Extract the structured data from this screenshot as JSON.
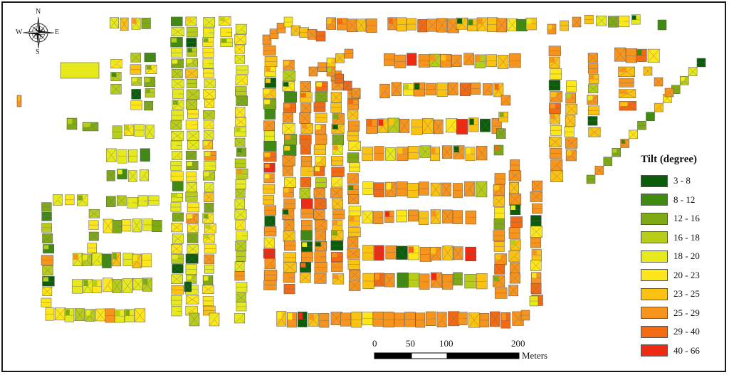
{
  "compass": {
    "north": "N",
    "south": "S",
    "east": "E",
    "west": "W"
  },
  "legend": {
    "title": "Tilt (degree)",
    "classes": [
      {
        "label": "3 - 8",
        "color": "#0b5d0b"
      },
      {
        "label": "8 - 12",
        "color": "#3f8a10"
      },
      {
        "label": "12 - 16",
        "color": "#7faa16"
      },
      {
        "label": "16 - 18",
        "color": "#b8cc1a"
      },
      {
        "label": "18 - 20",
        "color": "#e6ea1c"
      },
      {
        "label": "20 - 23",
        "color": "#fde61a"
      },
      {
        "label": "23 - 25",
        "color": "#fbc211"
      },
      {
        "label": "25 - 29",
        "color": "#f7941d"
      },
      {
        "label": "29 - 40",
        "color": "#f26a13"
      },
      {
        "label": "40 - 66",
        "color": "#ee2a13"
      }
    ]
  },
  "scale_bar": {
    "ticks": [
      "0",
      "50",
      "100",
      "200"
    ],
    "unit": "Meters"
  }
}
